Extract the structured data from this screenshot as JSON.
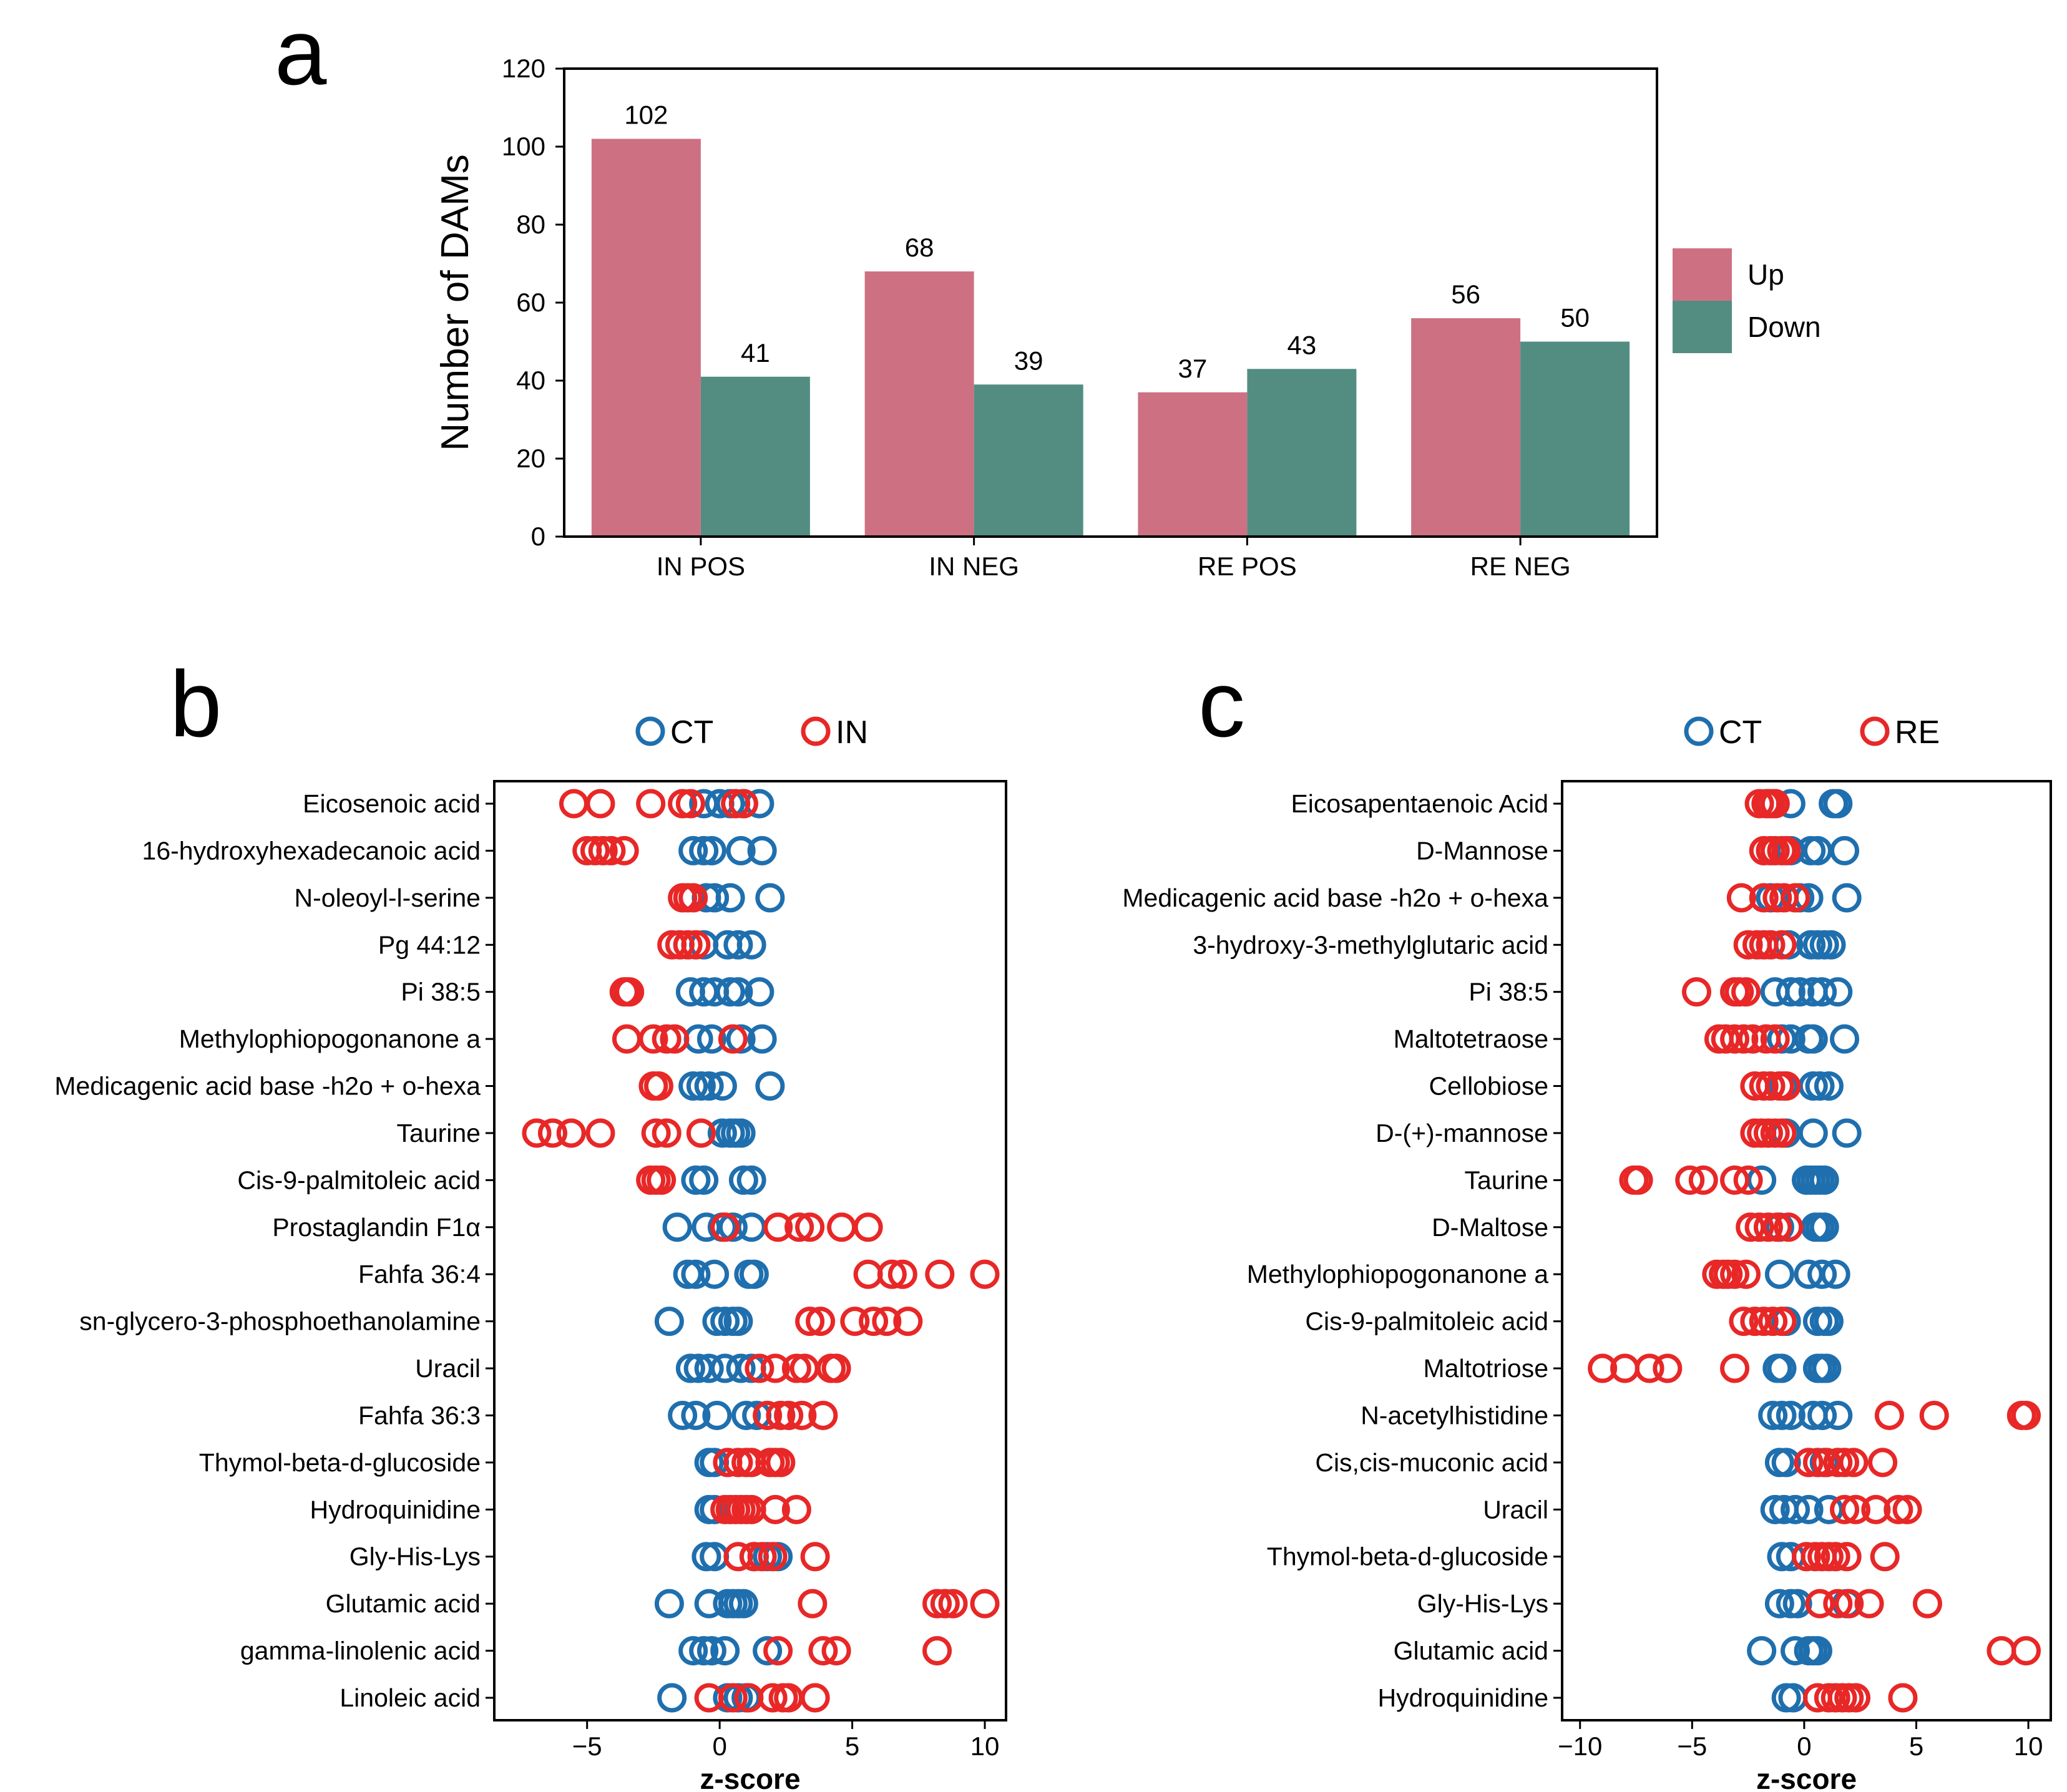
{
  "chart_data": [
    {
      "panel": "a",
      "type": "bar",
      "categories": [
        "IN POS",
        "IN NEG",
        "RE POS",
        "RE NEG"
      ],
      "series": [
        {
          "name": "Up",
          "values": [
            102,
            68,
            37,
            56
          ],
          "color": "#CD7182"
        },
        {
          "name": "Down",
          "values": [
            41,
            39,
            43,
            50
          ],
          "color": "#538D82"
        }
      ],
      "ylabel": "Number of DAMs",
      "ylim": [
        0,
        120
      ],
      "yticks": [
        0,
        20,
        40,
        60,
        80,
        100,
        120
      ],
      "legend": "right"
    },
    {
      "panel": "b",
      "type": "scatter",
      "groups": [
        {
          "name": "CT",
          "color": "#1F6FAE"
        },
        {
          "name": "IN",
          "color": "#E82727"
        }
      ],
      "rows": [
        {
          "label": "Eicosenoic acid",
          "CT": [
            -0.6,
            0,
            0.4,
            0.9,
            1.5
          ],
          "IN": [
            -5.5,
            -4.5,
            -2.6,
            -1.4,
            -1.1,
            0.6,
            0.9
          ]
        },
        {
          "label": "16-hydroxyhexadecanoic acid",
          "CT": [
            -1,
            -0.6,
            -0.3,
            0.8,
            1.6
          ],
          "IN": [
            -5,
            -4.7,
            -4.4,
            -4.1,
            -3.6
          ]
        },
        {
          "label": "N-oleoyl-l-serine",
          "CT": [
            -0.5,
            -0.2,
            0.4,
            1.9
          ],
          "IN": [
            -1.4,
            -1.2,
            -1.0
          ]
        },
        {
          "label": "Pg 44:12",
          "CT": [
            -0.6,
            0.3,
            0.7,
            1.2
          ],
          "IN": [
            -1.8,
            -1.5,
            -1.2,
            -0.9
          ]
        },
        {
          "label": "Pi 38:5",
          "CT": [
            -1.1,
            -0.6,
            -0.2,
            0.4,
            0.7,
            1.5
          ],
          "IN": [
            -3.6,
            -3.5,
            -3.4
          ]
        },
        {
          "label": "Methylophiopogonanone a",
          "CT": [
            -0.8,
            -0.3,
            0.8,
            1.6
          ],
          "IN": [
            -3.5,
            -2.5,
            -2.0,
            -1.7,
            0.5
          ]
        },
        {
          "label": "Medicagenic acid base -h2o + o-hexa",
          "CT": [
            -1.0,
            -0.7,
            -0.4,
            0.1,
            1.9
          ],
          "IN": [
            -2.5,
            -2.3
          ]
        },
        {
          "label": "Taurine",
          "CT": [
            0.1,
            0.4,
            0.6,
            0.8
          ],
          "IN": [
            -6.9,
            -6.3,
            -5.6,
            -4.5,
            -2.4,
            -2.0,
            -0.7
          ]
        },
        {
          "label": "Cis-9-palmitoleic acid",
          "CT": [
            -0.9,
            -0.6,
            0.9,
            1.2
          ],
          "IN": [
            -2.6,
            -2.4,
            -2.2
          ]
        },
        {
          "label": "Prostaglandin F1α",
          "CT": [
            -1.6,
            -0.5,
            0.1,
            0.5,
            1.2
          ],
          "IN": [
            0.2,
            2.2,
            3.0,
            3.4,
            4.6,
            5.6
          ]
        },
        {
          "label": "Fahfa 36:4",
          "CT": [
            -1.2,
            -0.9,
            -0.2,
            1.1,
            1.3
          ],
          "IN": [
            5.6,
            6.5,
            6.9,
            8.3,
            10.0
          ]
        },
        {
          "label": "sn-glycero-3-phosphoethanolamine",
          "CT": [
            -1.9,
            -0.1,
            0.2,
            0.5,
            0.7
          ],
          "IN": [
            3.4,
            3.8,
            5.1,
            5.8,
            6.3,
            7.1
          ]
        },
        {
          "label": "Uracil",
          "CT": [
            -1.1,
            -0.8,
            -0.4,
            0.2,
            0.8,
            1.2
          ],
          "IN": [
            1.5,
            2.1,
            2.9,
            3.2,
            4.2,
            4.4
          ]
        },
        {
          "label": "Fahfa 36:3",
          "CT": [
            -1.4,
            -0.9,
            -0.1,
            1.0,
            1.4
          ],
          "IN": [
            1.8,
            2.3,
            2.6,
            3.1,
            3.9
          ]
        },
        {
          "label": "Thymol-beta-d-glucoside",
          "CT": [
            -0.4,
            -0.2
          ],
          "IN": [
            0.3,
            0.7,
            1.0,
            1.2,
            1.9,
            2.1,
            2.3
          ]
        },
        {
          "label": "Hydroquinidine",
          "CT": [
            -0.4,
            -0.2
          ],
          "IN": [
            0.2,
            0.4,
            0.6,
            0.8,
            1.0,
            1.2,
            2.1,
            2.9
          ]
        },
        {
          "label": "Gly-His-Lys",
          "CT": [
            -0.5,
            -0.2,
            1.3,
            1.8,
            2.2
          ],
          "IN": [
            0.7,
            1.3,
            1.6,
            2.0,
            3.6
          ]
        },
        {
          "label": "Glutamic acid",
          "CT": [
            -1.9,
            -0.4,
            0.3,
            0.5,
            0.7,
            0.9
          ],
          "IN": [
            3.5,
            8.2,
            8.5,
            8.8,
            10.0
          ]
        },
        {
          "label": "gamma-linolenic acid",
          "CT": [
            -1.0,
            -0.6,
            -0.3,
            0.2,
            1.8
          ],
          "IN": [
            2.2,
            3.9,
            4.4,
            8.2
          ]
        },
        {
          "label": "Linoleic acid",
          "CT": [
            -1.8,
            0.3,
            0.7,
            1.0
          ],
          "IN": [
            -0.4,
            0.5,
            1.1,
            2.0,
            2.4,
            2.6,
            3.6
          ]
        }
      ],
      "xlabel": "z-score",
      "xlim": [
        -8.5,
        10.8
      ],
      "xticks": [
        -5,
        0,
        5,
        10
      ],
      "legend": "top"
    },
    {
      "panel": "c",
      "type": "scatter",
      "groups": [
        {
          "name": "CT",
          "color": "#1F6FAE"
        },
        {
          "name": "RE",
          "color": "#E82727"
        }
      ],
      "rows": [
        {
          "label": "Eicosapentaenoic Acid",
          "CT": [
            -1.6,
            -1.3,
            -0.6,
            1.3,
            1.5
          ],
          "RE": [
            -2.0,
            -1.7,
            -1.5,
            -1.3
          ]
        },
        {
          "label": "D-Mannose",
          "CT": [
            -0.6,
            0.3,
            0.6,
            1.8
          ],
          "RE": [
            -1.8,
            -1.5,
            -1.3,
            -1.0,
            -0.8
          ]
        },
        {
          "label": "Medicagenic acid base -h2o + o-hexa",
          "CT": [
            -1.5,
            -0.2,
            0.2,
            1.9
          ],
          "RE": [
            -2.8,
            -1.8,
            -1.2,
            -0.9,
            -0.4
          ]
        },
        {
          "label": "3-hydroxy-3-methylglutaric acid",
          "CT": [
            -0.7,
            0.3,
            0.6,
            0.9,
            1.2
          ],
          "RE": [
            -2.5,
            -2.1,
            -1.8,
            -1.5,
            -1.0
          ]
        },
        {
          "label": "Pi 38:5",
          "CT": [
            -1.3,
            -0.6,
            -0.2,
            0.4,
            0.8,
            1.5
          ],
          "RE": [
            -4.8,
            -3.1,
            -2.9,
            -2.6
          ]
        },
        {
          "label": "Maltotetraose",
          "CT": [
            -1.0,
            -0.6,
            0.2,
            0.4,
            1.8
          ],
          "RE": [
            -3.8,
            -3.5,
            -3.1,
            -2.7,
            -2.3,
            -1.7,
            -1.3
          ]
        },
        {
          "label": "Cellobiose",
          "CT": [
            -0.9,
            0.4,
            0.7,
            1.1
          ],
          "RE": [
            -2.2,
            -1.8,
            -1.5,
            -1.1,
            -0.8
          ]
        },
        {
          "label": "D-(+)-mannose",
          "CT": [
            -0.8,
            0.4,
            1.9
          ],
          "RE": [
            -2.2,
            -1.9,
            -1.6,
            -1.3,
            -1.0
          ]
        },
        {
          "label": "Taurine",
          "CT": [
            -1.9,
            0.1,
            0.3,
            0.5,
            0.7,
            0.9
          ],
          "RE": [
            -7.6,
            -7.4,
            -5.1,
            -4.5,
            -3.1,
            -2.5
          ]
        },
        {
          "label": "D-Maltose",
          "CT": [
            -1.1,
            0.5,
            0.7,
            0.9
          ],
          "RE": [
            -2.4,
            -2.0,
            -1.6,
            -1.2,
            -0.7
          ]
        },
        {
          "label": "Methylophiopogonanone a",
          "CT": [
            -1.1,
            0.2,
            0.8,
            1.4
          ],
          "RE": [
            -3.9,
            -3.6,
            -3.4,
            -3.1,
            -2.6
          ]
        },
        {
          "label": "Cis-9-palmitoleic acid",
          "CT": [
            -0.8,
            0.6,
            0.9,
            1.1
          ],
          "RE": [
            -2.7,
            -2.2,
            -1.8,
            -1.4,
            -1.0
          ]
        },
        {
          "label": "Maltotriose",
          "CT": [
            -1.2,
            -1.0,
            0.6,
            0.8,
            1.0
          ],
          "RE": [
            -9.0,
            -8.0,
            -6.9,
            -6.1,
            -3.1
          ]
        },
        {
          "label": "N-acetylhistidine",
          "CT": [
            -1.4,
            -1.0,
            -0.6,
            0.4,
            0.8,
            1.5
          ],
          "RE": [
            3.8,
            5.8,
            9.7,
            9.9
          ]
        },
        {
          "label": "Cis,cis-muconic acid",
          "CT": [
            -1.1,
            -0.8,
            0.9
          ],
          "RE": [
            0.2,
            0.6,
            1.0,
            1.5,
            1.8,
            2.2,
            3.5
          ]
        },
        {
          "label": "Uracil",
          "CT": [
            -1.3,
            -0.9,
            -0.4,
            0.2,
            1.1
          ],
          "RE": [
            1.8,
            2.3,
            3.2,
            4.2,
            4.6
          ]
        },
        {
          "label": "Thymol-beta-d-glucoside",
          "CT": [
            -1.0,
            -0.6
          ],
          "RE": [
            0.1,
            0.5,
            0.8,
            1.1,
            1.4,
            1.9,
            3.6
          ]
        },
        {
          "label": "Gly-His-Lys",
          "CT": [
            -1.1,
            -0.6,
            -0.3,
            1.9
          ],
          "RE": [
            0.7,
            1.5,
            2.0,
            2.9,
            5.5
          ]
        },
        {
          "label": "Glutamic acid",
          "CT": [
            -1.9,
            -0.4,
            0.2,
            0.4,
            0.6
          ],
          "RE": [
            8.8,
            9.9
          ]
        },
        {
          "label": "Hydroquinidine",
          "CT": [
            -0.8,
            -0.5
          ],
          "RE": [
            0.6,
            1.1,
            1.4,
            1.7,
            2.0,
            2.3,
            4.4
          ]
        }
      ],
      "xlabel": "z-score",
      "xlim": [
        -10.8,
        11.0
      ],
      "xticks": [
        -10,
        -5,
        0,
        5,
        10
      ],
      "legend": "top"
    }
  ]
}
